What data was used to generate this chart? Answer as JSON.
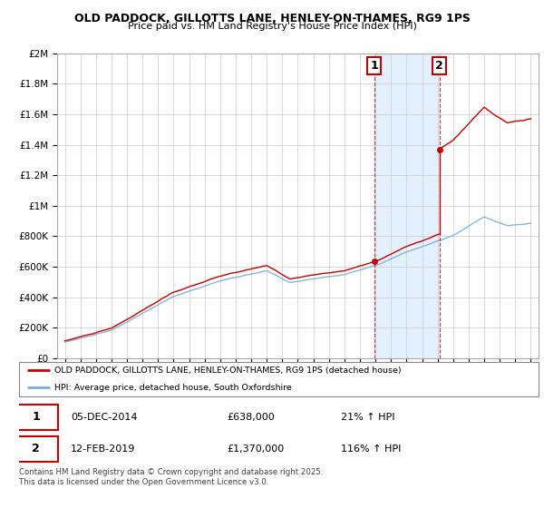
{
  "title1": "OLD PADDOCK, GILLOTTS LANE, HENLEY-ON-THAMES, RG9 1PS",
  "title2": "Price paid vs. HM Land Registry's House Price Index (HPI)",
  "legend_label1": "OLD PADDOCK, GILLOTTS LANE, HENLEY-ON-THAMES, RG9 1PS (detached house)",
  "legend_label2": "HPI: Average price, detached house, South Oxfordshire",
  "sale1_date": "05-DEC-2014",
  "sale1_price": 638000,
  "sale1_label": "1",
  "sale1_hpi": "21% ↑ HPI",
  "sale2_date": "12-FEB-2019",
  "sale2_price": 1370000,
  "sale2_label": "2",
  "sale2_hpi": "116% ↑ HPI",
  "footer": "Contains HM Land Registry data © Crown copyright and database right 2025.\nThis data is licensed under the Open Government Licence v3.0.",
  "color_red": "#CC0000",
  "color_blue": "#7BAFD4",
  "color_shading": "#DDEEFF",
  "ylim_max": 2000000,
  "ylim_min": 0,
  "sale1_x": 2014.92,
  "sale2_x": 2019.12,
  "xmin": 1994.5,
  "xmax": 2025.5
}
